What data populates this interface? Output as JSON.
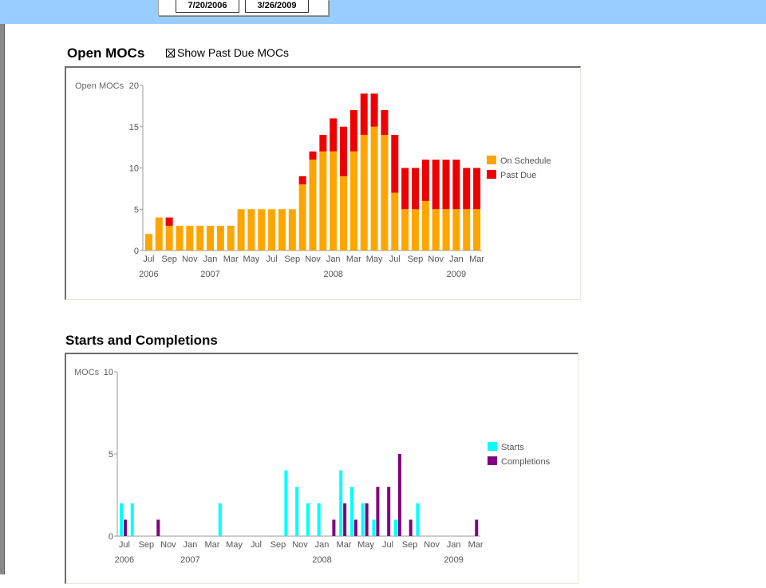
{
  "header": {
    "start_date": "7/20/2006",
    "end_date": "3/26/2009"
  },
  "open_section": {
    "title": "Open MOCs",
    "checkbox_label": "Show Past Due MOCs",
    "checkbox_checked": true
  },
  "starts_section": {
    "title": "Starts and Completions"
  },
  "colors": {
    "on_schedule": "#ffa500",
    "past_due": "#ee0000",
    "starts": "#00ffff",
    "completions": "#800080",
    "banner": "#99ccff"
  },
  "chart_data": [
    {
      "type": "bar",
      "stacked": true,
      "ylabel": "Open MOCs",
      "ylim": [
        0,
        20
      ],
      "yticks": [
        0,
        5,
        10,
        15,
        20
      ],
      "grid": false,
      "legend": "right",
      "tick_labels": [
        "Jul",
        "Sep",
        "Nov",
        "Jan",
        "Mar",
        "May",
        "Jul",
        "Sep",
        "Nov",
        "Jan",
        "Mar",
        "May",
        "Jul",
        "Sep",
        "Nov",
        "Jan",
        "Mar"
      ],
      "year_labels": [
        "2006",
        "2007",
        "2008",
        "2009"
      ],
      "series": [
        {
          "name": "On Schedule",
          "values": [
            2,
            4,
            3,
            3,
            3,
            3,
            3,
            3,
            3,
            5,
            5,
            5,
            5,
            5,
            5,
            8,
            11,
            12,
            12,
            9,
            12,
            14,
            15,
            14,
            7,
            5,
            5,
            6,
            5,
            5,
            5,
            5,
            5
          ]
        },
        {
          "name": "Past Due",
          "values": [
            0,
            0,
            1,
            0,
            0,
            0,
            0,
            0,
            0,
            0,
            0,
            0,
            0,
            0,
            0,
            1,
            1,
            2,
            4,
            6,
            5,
            5,
            4,
            3,
            7,
            5,
            5,
            5,
            6,
            6,
            6,
            5,
            5
          ]
        }
      ]
    },
    {
      "type": "bar",
      "ylabel": "MOCs",
      "ylim": [
        0,
        10
      ],
      "yticks": [
        0,
        5,
        10
      ],
      "grid": false,
      "legend": "right",
      "tick_labels": [
        "Jul",
        "Sep",
        "Nov",
        "Jan",
        "Mar",
        "May",
        "Jul",
        "Sep",
        "Nov",
        "Jan",
        "Mar",
        "May",
        "Jul",
        "Sep",
        "Nov",
        "Jan",
        "Mar"
      ],
      "year_labels": [
        "2006",
        "2007",
        "2008",
        "2009"
      ],
      "series": [
        {
          "name": "Starts",
          "values": [
            2,
            2,
            0,
            0,
            0,
            0,
            0,
            0,
            0,
            2,
            0,
            0,
            0,
            0,
            0,
            4,
            3,
            2,
            2,
            0,
            4,
            3,
            2,
            1,
            0,
            1,
            0,
            2,
            0,
            0,
            0,
            0,
            0
          ]
        },
        {
          "name": "Completions",
          "values": [
            1,
            0,
            0,
            1,
            0,
            0,
            0,
            0,
            0,
            0,
            0,
            0,
            0,
            0,
            0,
            0,
            0,
            0,
            0,
            1,
            2,
            1,
            2,
            3,
            3,
            5,
            1,
            0,
            0,
            0,
            0,
            0,
            1
          ]
        }
      ]
    }
  ]
}
